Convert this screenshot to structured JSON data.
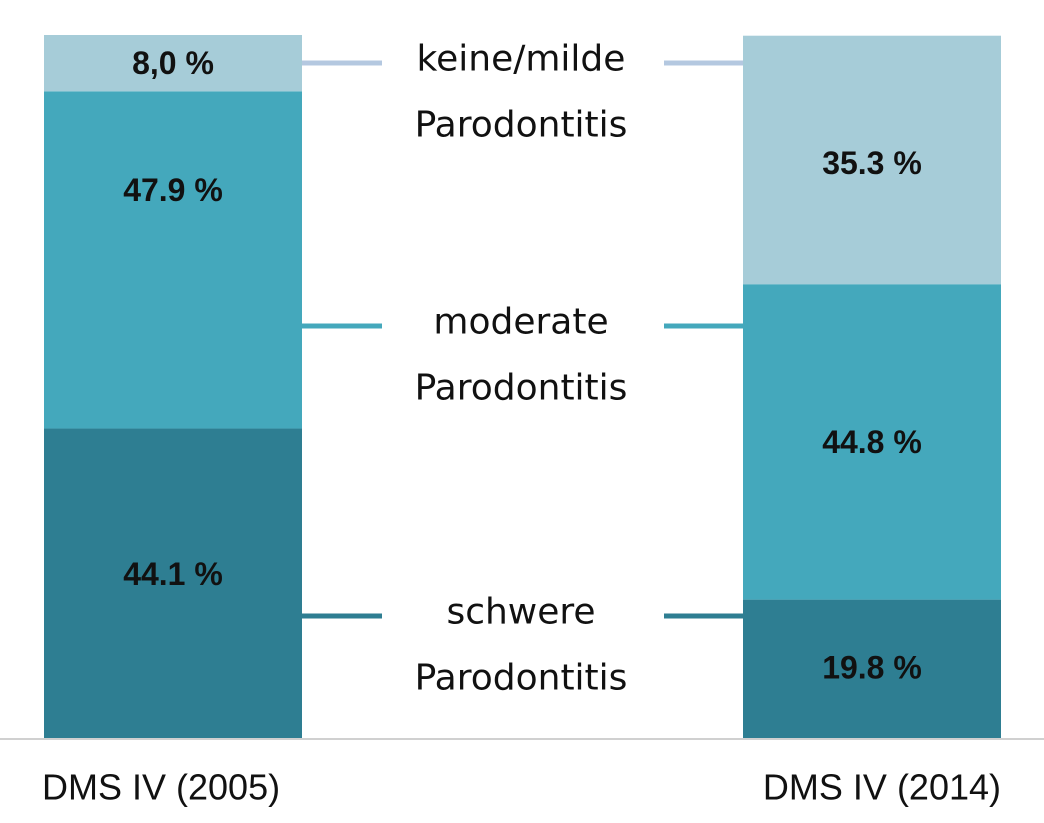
{
  "chart_data": {
    "type": "bar",
    "stacked": true,
    "categories": [
      "DMS IV (2005)",
      "DMS IV (2014)"
    ],
    "series": [
      {
        "name_lines": [
          "schwere",
          "Parodontitis"
        ],
        "values": [
          44.1,
          19.8
        ],
        "labels": [
          "44.1 %",
          "19.8 %"
        ],
        "color": "#2e7e92"
      },
      {
        "name_lines": [
          "moderate",
          "Parodontitis"
        ],
        "values": [
          47.9,
          44.8
        ],
        "labels": [
          "47.9 %",
          "44.8 %"
        ],
        "color": "#44a8bc"
      },
      {
        "name_lines": [
          "keine/milde",
          "Parodontitis"
        ],
        "values": [
          8.0,
          35.3
        ],
        "labels": [
          "8,0 %",
          "35.3 %"
        ],
        "color": "#a6ccd8"
      }
    ],
    "connector_colors": [
      "#2e7e92",
      "#44a8bc",
      "#b4c8e0"
    ],
    "axis_color": "#d0d0d0",
    "ylim": [
      0,
      100
    ],
    "legend": "center"
  }
}
